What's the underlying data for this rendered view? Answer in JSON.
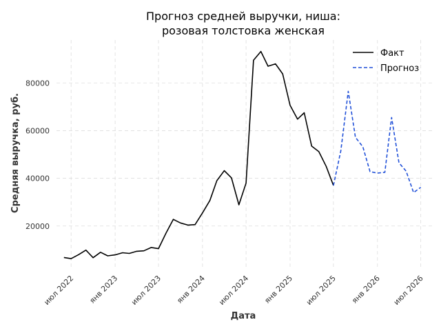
{
  "chart_data": {
    "type": "line",
    "title": [
      "Прогноз средней выручки, ниша:",
      "розовая толстовка женская"
    ],
    "xlabel": "Дата",
    "ylabel": "Средняя выручка, руб.",
    "xlim": [
      "2022-05-01",
      "2026-08-20"
    ],
    "ylim": [
      2000,
      98000
    ],
    "x_ticks": [
      {
        "date": "2022-07-01",
        "label": "июл 2022"
      },
      {
        "date": "2023-01-01",
        "label": "янв 2023"
      },
      {
        "date": "2023-07-01",
        "label": "июл 2023"
      },
      {
        "date": "2024-01-01",
        "label": "янв 2024"
      },
      {
        "date": "2024-07-01",
        "label": "июл 2024"
      },
      {
        "date": "2025-01-01",
        "label": "янв 2025"
      },
      {
        "date": "2025-07-01",
        "label": "июл 2025"
      },
      {
        "date": "2026-01-01",
        "label": "янв 2026"
      },
      {
        "date": "2026-07-01",
        "label": "июл 2026"
      }
    ],
    "y_ticks": [
      20000,
      40000,
      60000,
      80000
    ],
    "grid": true,
    "legend_position": "top-right",
    "series": [
      {
        "name": "Факт",
        "color": "#000000",
        "style": "solid",
        "points": [
          [
            "2022-06-01",
            6800
          ],
          [
            "2022-07-01",
            6300
          ],
          [
            "2022-08-01",
            8000
          ],
          [
            "2022-09-01",
            9900
          ],
          [
            "2022-10-01",
            6700
          ],
          [
            "2022-11-01",
            9000
          ],
          [
            "2022-12-01",
            7500
          ],
          [
            "2023-01-01",
            7900
          ],
          [
            "2023-02-01",
            8800
          ],
          [
            "2023-03-01",
            8500
          ],
          [
            "2023-04-01",
            9400
          ],
          [
            "2023-05-01",
            9600
          ],
          [
            "2023-06-01",
            11000
          ],
          [
            "2023-07-01",
            10500
          ],
          [
            "2023-08-01",
            16900
          ],
          [
            "2023-09-01",
            22800
          ],
          [
            "2023-10-01",
            21300
          ],
          [
            "2023-11-01",
            20400
          ],
          [
            "2023-12-01",
            20600
          ],
          [
            "2024-01-01",
            25500
          ],
          [
            "2024-02-01",
            30700
          ],
          [
            "2024-03-01",
            39000
          ],
          [
            "2024-04-01",
            43200
          ],
          [
            "2024-05-01",
            40200
          ],
          [
            "2024-06-01",
            28900
          ],
          [
            "2024-07-01",
            38000
          ],
          [
            "2024-08-01",
            89500
          ],
          [
            "2024-09-01",
            93200
          ],
          [
            "2024-10-01",
            87000
          ],
          [
            "2024-11-01",
            88000
          ],
          [
            "2024-12-01",
            83800
          ],
          [
            "2025-01-01",
            70600
          ],
          [
            "2025-02-01",
            64800
          ],
          [
            "2025-03-01",
            67500
          ],
          [
            "2025-04-01",
            53500
          ],
          [
            "2025-05-01",
            51200
          ],
          [
            "2025-06-01",
            45000
          ],
          [
            "2025-07-01",
            37000
          ]
        ]
      },
      {
        "name": "Прогноз",
        "color": "#1f4fd8",
        "style": "dashed",
        "points": [
          [
            "2025-07-01",
            37000
          ],
          [
            "2025-08-01",
            51500
          ],
          [
            "2025-09-01",
            76500
          ],
          [
            "2025-10-01",
            57200
          ],
          [
            "2025-11-01",
            53200
          ],
          [
            "2025-12-01",
            42800
          ],
          [
            "2026-01-01",
            42200
          ],
          [
            "2026-02-01",
            42500
          ],
          [
            "2026-03-01",
            65500
          ],
          [
            "2026-04-01",
            46500
          ],
          [
            "2026-05-01",
            43000
          ],
          [
            "2026-06-01",
            34000
          ],
          [
            "2026-07-01",
            36200
          ]
        ]
      }
    ]
  }
}
